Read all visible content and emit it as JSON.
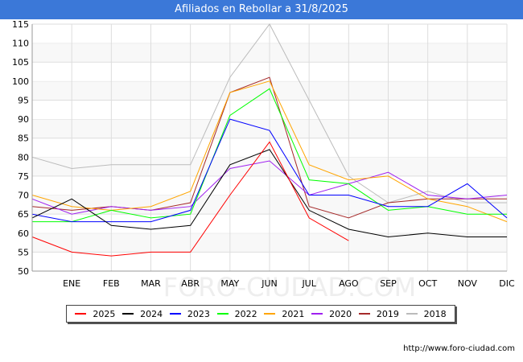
{
  "title": "Afiliados en Rebollar a 31/8/2025",
  "footer_url": "http://www.foro-ciudad.com",
  "watermark": "FORO-CIUDAD.COM",
  "chart_data": {
    "type": "line",
    "categories": [
      "",
      "ENE",
      "FEB",
      "MAR",
      "ABR",
      "MAY",
      "JUN",
      "JUL",
      "AGO",
      "SEP",
      "OCT",
      "NOV",
      "DIC"
    ],
    "ylim": [
      50,
      115
    ],
    "yticks": [
      50,
      55,
      60,
      65,
      70,
      75,
      80,
      85,
      90,
      95,
      100,
      105,
      110,
      115
    ],
    "grid": true,
    "legend_position": "bottom",
    "series": [
      {
        "name": "2025",
        "color": "#ff0000",
        "values": [
          59,
          55,
          54,
          55,
          55,
          70,
          84,
          64,
          58,
          null,
          null,
          null,
          null
        ]
      },
      {
        "name": "2024",
        "color": "#000000",
        "values": [
          64,
          69,
          62,
          61,
          62,
          78,
          82,
          66,
          61,
          59,
          60,
          59,
          59
        ]
      },
      {
        "name": "2023",
        "color": "#0000ff",
        "values": [
          65,
          63,
          63,
          63,
          66,
          90,
          87,
          70,
          70,
          67,
          67,
          73,
          64
        ]
      },
      {
        "name": "2022",
        "color": "#00ff00",
        "values": [
          63,
          63,
          66,
          64,
          65,
          91,
          98,
          74,
          73,
          66,
          67,
          65,
          65
        ]
      },
      {
        "name": "2021",
        "color": "#ffa500",
        "values": [
          70,
          67,
          66,
          67,
          71,
          97,
          100,
          78,
          74,
          75,
          69,
          67,
          63
        ]
      },
      {
        "name": "2020",
        "color": "#a020f0",
        "values": [
          69,
          65,
          67,
          66,
          67,
          77,
          79,
          70,
          73,
          76,
          70,
          69,
          70
        ]
      },
      {
        "name": "2019",
        "color": "#a52a2a",
        "values": [
          67,
          66,
          67,
          66,
          68,
          97,
          101,
          67,
          64,
          68,
          69,
          69,
          69
        ]
      },
      {
        "name": "2018",
        "color": "#bbbbbb",
        "values": [
          80,
          77,
          78,
          78,
          78,
          101,
          115,
          95,
          75,
          68,
          71,
          68,
          68
        ]
      }
    ]
  }
}
